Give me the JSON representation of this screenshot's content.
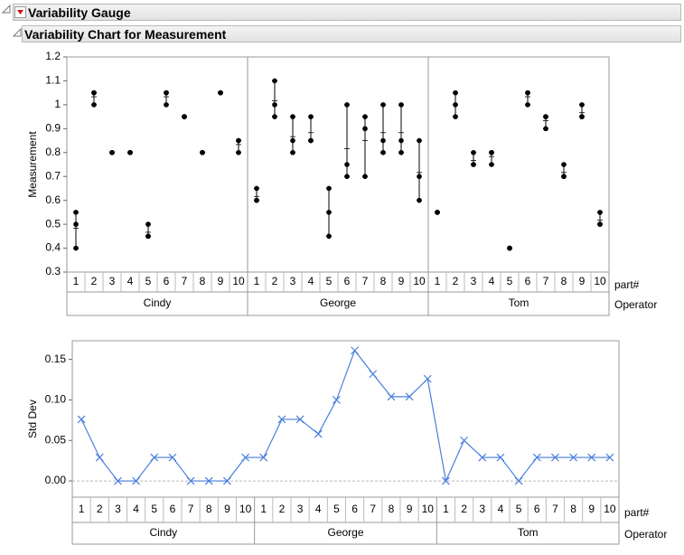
{
  "header": {
    "title": "Variability Gauge",
    "subtitle": "Variability Chart for Measurement"
  },
  "chart_data": [
    {
      "type": "variability",
      "ylabel": "Measurement",
      "xlabel": "part#",
      "group_label": "Operator",
      "categories": [
        "1",
        "2",
        "3",
        "4",
        "5",
        "6",
        "7",
        "8",
        "9",
        "10"
      ],
      "color": "#000000",
      "ylim": [
        0.3,
        1.2
      ],
      "yticks": [
        0.3,
        0.4,
        0.5,
        0.6,
        0.7,
        0.8,
        0.9,
        1,
        1.1,
        1.2
      ],
      "series": [
        {
          "name": "Cindy",
          "values": [
            [
              0.4,
              0.5,
              0.55
            ],
            [
              1.0,
              1.05,
              1.05
            ],
            [
              0.8,
              0.8,
              0.8
            ],
            [
              0.8,
              0.8,
              0.8
            ],
            [
              0.45,
              0.5,
              0.45
            ],
            [
              1.0,
              1.05,
              1.05
            ],
            [
              0.95,
              0.95,
              0.95
            ],
            [
              0.8,
              0.8,
              0.8
            ],
            [
              1.05,
              1.05,
              1.05
            ],
            [
              0.8,
              0.85,
              0.85
            ]
          ]
        },
        {
          "name": "George",
          "values": [
            [
              0.6,
              0.65,
              0.6
            ],
            [
              0.95,
              1.0,
              1.1
            ],
            [
              0.8,
              0.85,
              0.95
            ],
            [
              0.85,
              0.95,
              0.85
            ],
            [
              0.45,
              0.55,
              0.65
            ],
            [
              0.7,
              0.75,
              1.0
            ],
            [
              0.7,
              0.9,
              0.95
            ],
            [
              0.8,
              0.85,
              1.0
            ],
            [
              0.8,
              0.85,
              1.0
            ],
            [
              0.6,
              0.7,
              0.85
            ]
          ]
        },
        {
          "name": "Tom",
          "values": [
            [
              0.55,
              0.55,
              0.55
            ],
            [
              0.95,
              1.0,
              1.05
            ],
            [
              0.75,
              0.8,
              0.75
            ],
            [
              0.75,
              0.8,
              0.8
            ],
            [
              0.4,
              0.4,
              0.4
            ],
            [
              1.0,
              1.05,
              1.05
            ],
            [
              0.9,
              0.95,
              0.95
            ],
            [
              0.7,
              0.75,
              0.7
            ],
            [
              0.95,
              1.0,
              0.95
            ],
            [
              0.5,
              0.55,
              0.5
            ]
          ]
        }
      ]
    },
    {
      "type": "line",
      "ylabel": "Std Dev",
      "xlabel": "part#",
      "group_label": "Operator",
      "categories": [
        "1",
        "2",
        "3",
        "4",
        "5",
        "6",
        "7",
        "8",
        "9",
        "10"
      ],
      "color": "#4a7fdd",
      "ylim": [
        -0.02,
        0.173
      ],
      "yticks": [
        {
          "value": 0,
          "label": "0.00"
        },
        {
          "value": 0.05,
          "label": "0.05"
        },
        {
          "value": 0.1,
          "label": "0.10"
        },
        {
          "value": 0.15,
          "label": "0.15"
        }
      ],
      "series": [
        {
          "name": "Cindy",
          "values": [
            0.076,
            0.029,
            0,
            0,
            0.029,
            0.029,
            0,
            0,
            0,
            0.029
          ]
        },
        {
          "name": "George",
          "values": [
            0.029,
            0.076,
            0.076,
            0.058,
            0.1,
            0.161,
            0.132,
            0.104,
            0.104,
            0.126
          ]
        },
        {
          "name": "Tom",
          "values": [
            0,
            0.05,
            0.029,
            0.029,
            0,
            0.029,
            0.029,
            0.029,
            0.029,
            0.029
          ]
        }
      ]
    }
  ]
}
